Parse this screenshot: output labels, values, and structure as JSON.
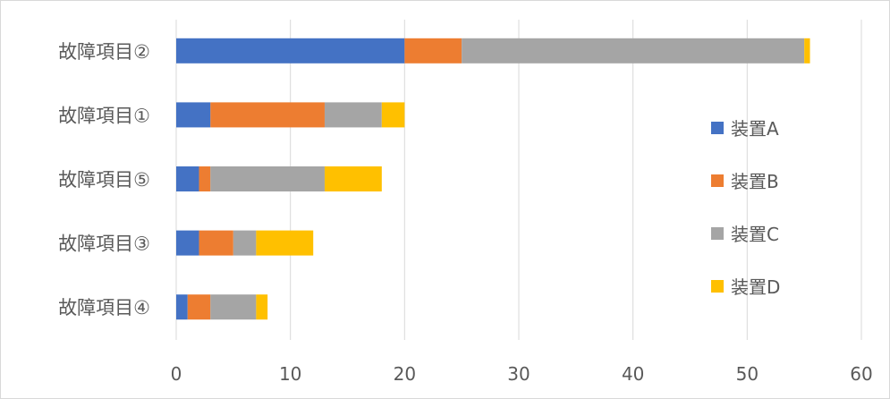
{
  "chart_data": {
    "type": "bar",
    "orientation": "horizontal",
    "stacked": true,
    "title": "",
    "xlabel": "",
    "ylabel": "",
    "categories": [
      "故障項目②",
      "故障項目①",
      "故障項目⑤",
      "故障項目③",
      "故障項目④"
    ],
    "series": [
      {
        "name": "装置A",
        "color": "#4472C4",
        "values": [
          20,
          3,
          2,
          2,
          1
        ]
      },
      {
        "name": "装置B",
        "color": "#ED7D31",
        "values": [
          5,
          10,
          1,
          3,
          2
        ]
      },
      {
        "name": "装置C",
        "color": "#A5A5A5",
        "values": [
          30,
          5,
          10,
          2,
          4
        ]
      },
      {
        "name": "装置D",
        "color": "#FFC000",
        "values": [
          0.5,
          2,
          5,
          5,
          1
        ]
      }
    ],
    "xlim": [
      0,
      60
    ],
    "xticks": [
      0,
      10,
      20,
      30,
      40,
      50,
      60
    ],
    "grid": true,
    "legend_position": "right"
  }
}
